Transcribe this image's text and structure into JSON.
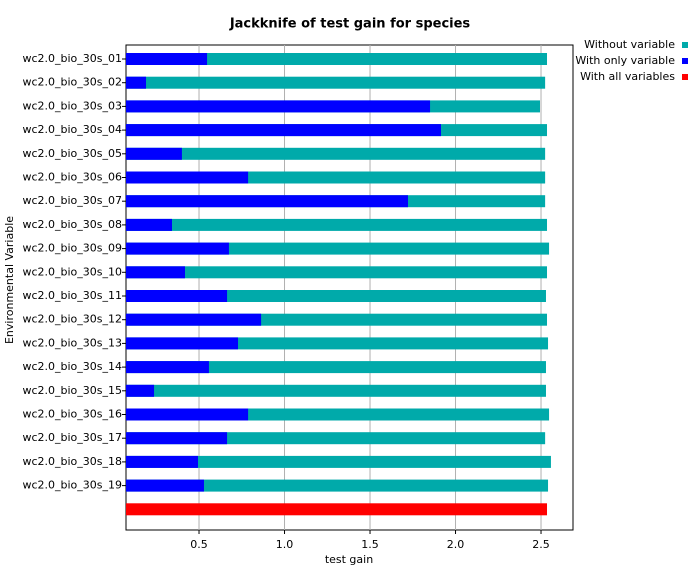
{
  "chart_data": {
    "type": "bar",
    "orientation": "horizontal",
    "title": "Jackknife of test gain for species",
    "x_label": "test gain",
    "y_label": "Environmental Variable",
    "categories": [
      "wc2.0_bio_30s_01",
      "wc2.0_bio_30s_02",
      "wc2.0_bio_30s_03",
      "wc2.0_bio_30s_04",
      "wc2.0_bio_30s_05",
      "wc2.0_bio_30s_06",
      "wc2.0_bio_30s_07",
      "wc2.0_bio_30s_08",
      "wc2.0_bio_30s_09",
      "wc2.0_bio_30s_10",
      "wc2.0_bio_30s_11",
      "wc2.0_bio_30s_12",
      "wc2.0_bio_30s_13",
      "wc2.0_bio_30s_14",
      "wc2.0_bio_30s_15",
      "wc2.0_bio_30s_16",
      "wc2.0_bio_30s_17",
      "wc2.0_bio_30s_18",
      "wc2.0_bio_30s_19",
      null
    ],
    "series": [
      {
        "name": "Without variable",
        "color": "#00aaaa",
        "values": [
          2.535,
          2.524,
          2.494,
          2.535,
          2.524,
          2.524,
          2.524,
          2.535,
          2.547,
          2.535,
          2.529,
          2.535,
          2.541,
          2.529,
          2.529,
          2.547,
          2.524,
          2.558,
          2.541,
          null
        ]
      },
      {
        "name": "With only variable",
        "color": "#0000ff",
        "values": [
          0.547,
          0.19,
          1.851,
          1.915,
          0.4,
          0.787,
          1.722,
          0.342,
          0.675,
          0.418,
          0.664,
          0.863,
          0.728,
          0.558,
          0.237,
          0.787,
          0.664,
          0.494,
          0.529,
          null
        ]
      },
      {
        "name": "With all variables",
        "color": "#ff0000",
        "values": [
          null,
          null,
          null,
          null,
          null,
          null,
          null,
          null,
          null,
          null,
          null,
          null,
          null,
          null,
          null,
          null,
          null,
          null,
          null,
          2.535
        ]
      }
    ],
    "xlim": [
      0.073,
      2.687
    ],
    "xticks": [
      0.5,
      {
        "value": 1,
        "label": "1.0"
      },
      1.5,
      {
        "value": 2,
        "label": "2.0"
      },
      2.5
    ],
    "grid": true,
    "legend": "right"
  }
}
